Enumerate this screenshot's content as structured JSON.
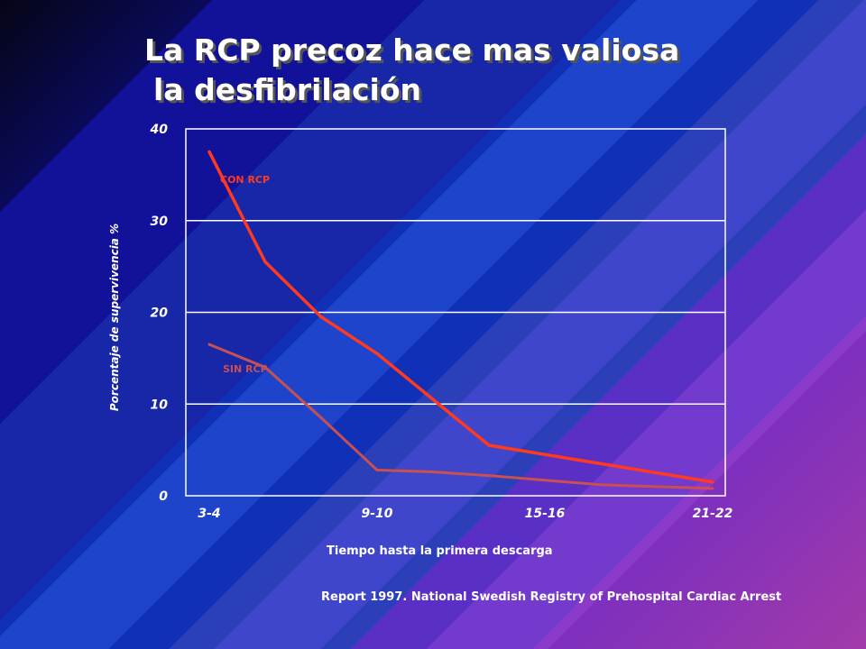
{
  "slide": {
    "title_line1": "La RCP precoz hace mas valiosa",
    "title_line2": "la desfibrilación",
    "source": "Report 1997. National Swedish Registry of Prehospital Cardiac Arrest"
  },
  "chart_data": {
    "type": "line",
    "title": "",
    "xlabel": "Tiempo hasta la primera descarga",
    "ylabel": "Porcentaje de supervivencia %",
    "ylim": [
      0,
      40
    ],
    "yticks": [
      0,
      10,
      20,
      30,
      40
    ],
    "grid": true,
    "categories": [
      "3-4",
      "9-10",
      "15-16",
      "21-22"
    ],
    "x": [
      3.5,
      5.5,
      7.5,
      9.5,
      11.5,
      13.5,
      15.5,
      17.5,
      19.5,
      21.5
    ],
    "series": [
      {
        "name": "CON RCP",
        "color": "#ff3a1e",
        "values": [
          37.5,
          25.5,
          19.5,
          15.5,
          10.5,
          5.5,
          4.5,
          3.5,
          2.5,
          1.5
        ]
      },
      {
        "name": "SIN RCP",
        "color": "#c85050",
        "values": [
          16.5,
          14,
          8.5,
          2.8,
          2.6,
          2.2,
          1.7,
          1.2,
          1.0,
          0.8
        ]
      }
    ]
  }
}
